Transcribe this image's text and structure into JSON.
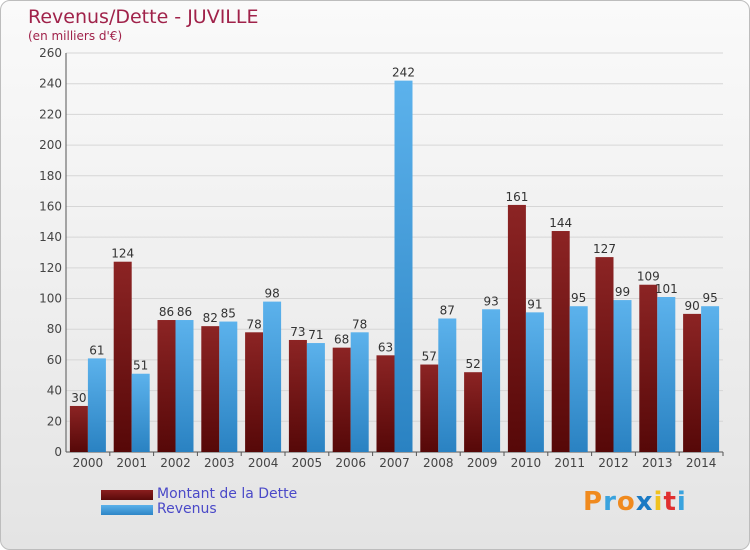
{
  "title": "Revenus/Dette - JUVILLE",
  "subtitle": "(en milliers d'€)",
  "logo": {
    "text": "Proxiti",
    "colors": [
      "#f08a1e",
      "#3aa3de",
      "#f08a1e",
      "#1a7ac4",
      "#f0c21e",
      "#e03030",
      "#3aa3de"
    ]
  },
  "chart_data": {
    "type": "bar",
    "categories": [
      "2000",
      "2001",
      "2002",
      "2003",
      "2004",
      "2005",
      "2006",
      "2007",
      "2008",
      "2009",
      "2010",
      "2011",
      "2012",
      "2013",
      "2014"
    ],
    "series": [
      {
        "name": "Montant de la Dette",
        "color": "#7a1414",
        "values": [
          30,
          124,
          86,
          82,
          78,
          73,
          68,
          63,
          57,
          52,
          161,
          144,
          127,
          109,
          90
        ]
      },
      {
        "name": "Revenus",
        "color": "#3d9ad9",
        "values": [
          61,
          51,
          86,
          85,
          98,
          71,
          78,
          242,
          87,
          93,
          91,
          95,
          99,
          101,
          95
        ]
      }
    ],
    "ylim": [
      0,
      260
    ],
    "yticks": [
      0,
      20,
      40,
      60,
      80,
      100,
      120,
      140,
      160,
      180,
      200,
      220,
      240,
      260
    ],
    "grid": true,
    "legend": "bottom-left"
  }
}
